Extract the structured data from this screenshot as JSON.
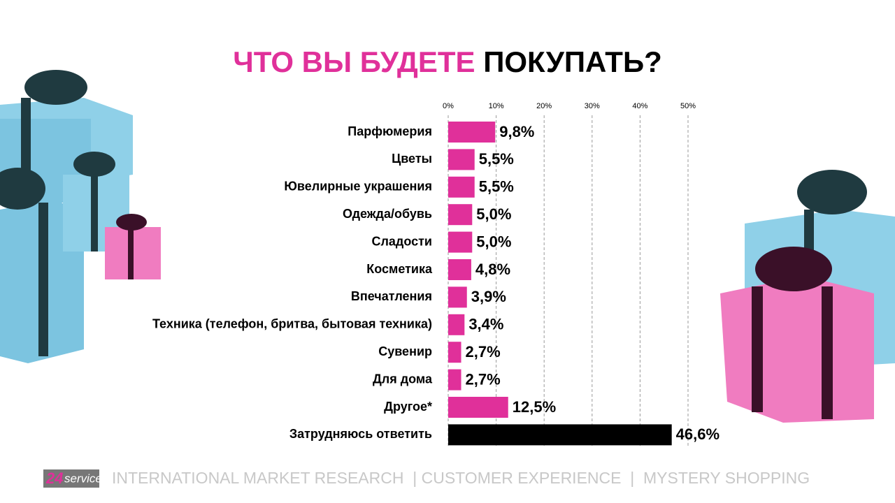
{
  "chart_data": {
    "type": "bar",
    "orientation": "horizontal",
    "title": [
      "ЧТО ВЫ БУДЕТЕ",
      "ПОКУПАТЬ?"
    ],
    "title_colors": [
      "#e0309a",
      "#000000"
    ],
    "categories": [
      "Парфюмерия",
      "Цветы",
      "Ювелирные украшения",
      "Одежда/обувь",
      "Сладости",
      "Косметика",
      "Впечатления",
      "Техника (телефон, бритва, бытовая техника)",
      "Сувенир",
      "Для дома",
      "Другое*",
      "Затрудняюсь ответить"
    ],
    "values": [
      9.8,
      5.5,
      5.5,
      5.0,
      5.0,
      4.8,
      3.9,
      3.4,
      2.7,
      2.7,
      12.5,
      46.6
    ],
    "value_labels": [
      "9,8%",
      "5,5%",
      "5,5%",
      "5,0%",
      "5,0%",
      "4,8%",
      "3,9%",
      "3,4%",
      "2,7%",
      "2,7%",
      "12,5%",
      "46,6%"
    ],
    "colors": [
      "#e0309a",
      "#e0309a",
      "#e0309a",
      "#e0309a",
      "#e0309a",
      "#e0309a",
      "#e0309a",
      "#e0309a",
      "#e0309a",
      "#e0309a",
      "#e0309a",
      "#000000"
    ],
    "xlim": [
      0,
      50
    ],
    "xticks": [
      {
        "value": 0,
        "label": "0%"
      },
      {
        "value": 10,
        "label": "10%"
      },
      {
        "value": 20,
        "label": "20%"
      },
      {
        "value": 30,
        "label": "30%"
      },
      {
        "value": 40,
        "label": "40%"
      },
      {
        "value": 50,
        "label": "50%"
      }
    ],
    "grid": true
  },
  "footer": {
    "logo": [
      "24",
      "service"
    ],
    "text": "INTERNATIONAL MARKET RESEARCH  | CUSTOMER EXPERIENCE  |  MYSTERY SHOPPING"
  }
}
